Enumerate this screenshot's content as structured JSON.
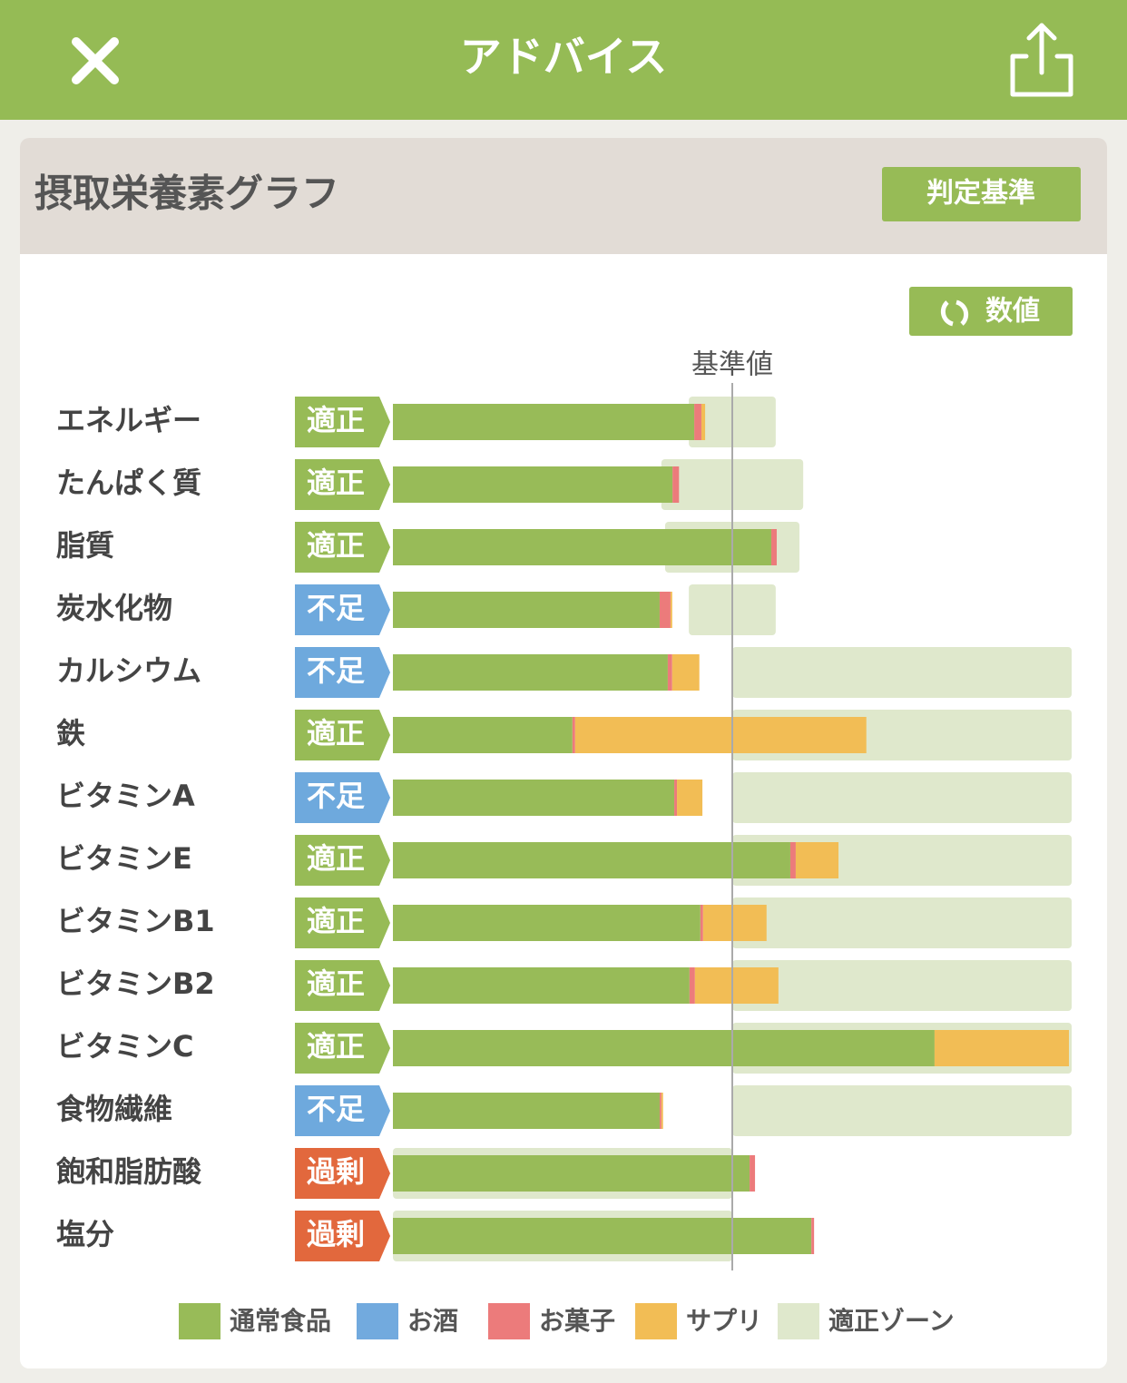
{
  "header": {
    "title": "アドバイス"
  },
  "card": {
    "title": "摂取栄養素グラフ",
    "criteria_button": "判定基準",
    "values_button": "数値"
  },
  "chart_data": {
    "type": "stacked-bar-horizontal",
    "categories": [
      "エネルギー",
      "たんぱく質",
      "脂質",
      "炭水化物",
      "カルシウム",
      "鉄",
      "ビタミンA",
      "ビタミンE",
      "ビタミンB1",
      "ビタミンB2",
      "ビタミンC",
      "食物繊維",
      "飽和脂肪酸",
      "塩分"
    ],
    "status": [
      "適正",
      "適正",
      "適正",
      "不足",
      "不足",
      "適正",
      "不足",
      "適正",
      "適正",
      "適正",
      "適正",
      "不足",
      "過剰",
      "過剰"
    ],
    "status_colors": {
      "適正": "#97bb56",
      "不足": "#6ea9dd",
      "過剰": "#e2683d"
    },
    "series": [
      {
        "name": "通常食品",
        "color": "#98bb58",
        "values": [
          88.8,
          82.4,
          111.5,
          78.6,
          81.0,
          52.9,
          82.9,
          117.1,
          90.6,
          87.4,
          159.6,
          78.6,
          105.1,
          123.3
        ]
      },
      {
        "name": "お酒",
        "color": "#72aade",
        "values": [
          0,
          0,
          0,
          0,
          0,
          0,
          0,
          0,
          0,
          0,
          0,
          0,
          0,
          0
        ]
      },
      {
        "name": "お菓子",
        "color": "#ec7b7b",
        "values": [
          2.1,
          1.9,
          1.6,
          3.2,
          1.3,
          0.8,
          0.8,
          1.6,
          0.8,
          1.6,
          0,
          0.5,
          1.6,
          0.8
        ]
      },
      {
        "name": "サプリ",
        "color": "#f2bd55",
        "values": [
          1.1,
          0,
          0,
          0.5,
          8.0,
          85.8,
          7.5,
          12.6,
          18.7,
          24.6,
          39.6,
          0.5,
          0,
          0
        ]
      }
    ],
    "zone": {
      "name": "適正ゾーン",
      "color": "#dfe8cc",
      "ranges": [
        [
          87.2,
          112.8
        ],
        [
          79.1,
          120.9
        ],
        [
          80.2,
          119.8
        ],
        [
          87.2,
          112.8
        ],
        [
          100,
          200
        ],
        [
          100,
          200
        ],
        [
          100,
          200
        ],
        [
          100,
          200
        ],
        [
          100,
          200
        ],
        [
          100,
          200
        ],
        [
          100,
          200
        ],
        [
          100,
          200
        ],
        [
          0,
          100
        ],
        [
          0,
          100
        ]
      ]
    },
    "reference": {
      "label": "基準値",
      "value": 100
    },
    "xlim": [
      0,
      200
    ]
  }
}
